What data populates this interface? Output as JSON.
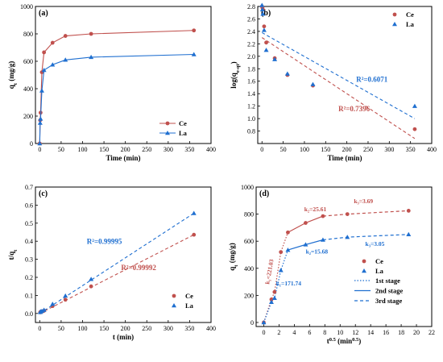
{
  "colors": {
    "ce": "#c0504d",
    "la": "#1f6fd0",
    "axis": "#000000"
  },
  "chart_data": [
    {
      "id": "a",
      "panel_label": "(a)",
      "type": "line",
      "xlabel": "Time (min)",
      "ylabel": "q_t (mg/g)",
      "xlim": [
        -10,
        400
      ],
      "ylim": [
        0,
        1000
      ],
      "xticks": [
        0,
        50,
        100,
        150,
        200,
        250,
        300,
        350,
        400
      ],
      "yticks": [
        0,
        200,
        400,
        600,
        800,
        1000
      ],
      "legend": "bottom-right",
      "series": [
        {
          "name": "Ce",
          "color": "#c0504d",
          "marker": "circle",
          "line": true,
          "x": [
            0,
            1,
            2,
            5,
            10,
            30,
            60,
            120,
            360
          ],
          "y": [
            0,
            170,
            225,
            520,
            665,
            735,
            785,
            800,
            825
          ]
        },
        {
          "name": "La",
          "color": "#1f6fd0",
          "marker": "triangle",
          "line": true,
          "x": [
            0,
            1,
            2,
            5,
            10,
            30,
            60,
            120,
            360
          ],
          "y": [
            0,
            150,
            180,
            385,
            535,
            575,
            610,
            630,
            650
          ]
        }
      ]
    },
    {
      "id": "b",
      "panel_label": "(b)",
      "type": "scatter",
      "xlabel": "Time (min)",
      "ylabel": "log(q_e-q_t)",
      "xlim": [
        -10,
        400
      ],
      "ylim": [
        0.6,
        2.8
      ],
      "xticks": [
        0,
        50,
        100,
        150,
        200,
        250,
        300,
        350,
        400
      ],
      "yticks": [
        0.8,
        1.0,
        1.2,
        1.4,
        1.6,
        1.8,
        2.0,
        2.2,
        2.4,
        2.6,
        2.8
      ],
      "legend": "top-right",
      "series": [
        {
          "name": "Ce",
          "color": "#c0504d",
          "marker": "circle",
          "x": [
            0,
            1,
            2,
            5,
            10,
            30,
            60,
            120,
            360
          ],
          "y": [
            2.8,
            2.78,
            2.75,
            2.48,
            2.22,
            1.97,
            1.7,
            1.53,
            0.83
          ],
          "fit": {
            "x": [
              0,
              360
            ],
            "y": [
              2.3,
              0.68
            ],
            "dash": true
          }
        },
        {
          "name": "La",
          "color": "#1f6fd0",
          "marker": "triangle",
          "x": [
            0,
            1,
            2,
            5,
            10,
            30,
            60,
            120,
            360
          ],
          "y": [
            2.82,
            2.75,
            2.68,
            2.42,
            2.1,
            1.95,
            1.72,
            1.55,
            1.2
          ],
          "fit": {
            "x": [
              0,
              360
            ],
            "y": [
              2.38,
              1.0
            ],
            "dash": true
          }
        }
      ],
      "annotations": [
        {
          "text": "R²=0.6071",
          "color": "#1f6fd0",
          "x": 222,
          "y": 1.59
        },
        {
          "text": "R²=0.7396",
          "color": "#c0504d",
          "x": 180,
          "y": 1.12
        }
      ]
    },
    {
      "id": "c",
      "panel_label": "(c)",
      "type": "scatter",
      "xlabel": "t (min)",
      "ylabel": "t/q_t",
      "xlim": [
        -10,
        400
      ],
      "ylim": [
        -0.05,
        0.7
      ],
      "xticks": [
        0,
        50,
        100,
        150,
        200,
        250,
        300,
        350,
        400
      ],
      "yticks": [
        0.0,
        0.1,
        0.2,
        0.3,
        0.4,
        0.5,
        0.6,
        0.7
      ],
      "legend": "bottom-right",
      "series": [
        {
          "name": "Ce",
          "color": "#c0504d",
          "marker": "circle",
          "x": [
            1,
            2,
            5,
            10,
            30,
            60,
            120,
            360
          ],
          "y": [
            0.006,
            0.009,
            0.01,
            0.015,
            0.041,
            0.076,
            0.15,
            0.436
          ],
          "fit": {
            "x": [
              0,
              360
            ],
            "y": [
              0.0,
              0.436
            ],
            "dash": true
          }
        },
        {
          "name": "La",
          "color": "#1f6fd0",
          "marker": "triangle",
          "x": [
            1,
            2,
            5,
            10,
            30,
            60,
            120,
            360
          ],
          "y": [
            0.007,
            0.011,
            0.013,
            0.019,
            0.052,
            0.098,
            0.19,
            0.555
          ],
          "fit": {
            "x": [
              0,
              360
            ],
            "y": [
              0.0,
              0.555
            ],
            "dash": true
          }
        }
      ],
      "annotations": [
        {
          "text": "R²=0.99995",
          "color": "#1f6fd0",
          "x": 110,
          "y": 0.385
        },
        {
          "text": "R²=0.99992",
          "color": "#c0504d",
          "x": 190,
          "y": 0.24
        }
      ]
    },
    {
      "id": "d",
      "panel_label": "(d)",
      "type": "line",
      "xlabel": "t^0.5 (min^0.5)",
      "ylabel": "q_t (mg/g)",
      "xlim": [
        -1,
        22
      ],
      "ylim": [
        -30,
        1000
      ],
      "xticks": [
        0,
        2,
        4,
        6,
        8,
        10,
        12,
        14,
        16,
        18,
        20,
        22
      ],
      "yticks": [
        0,
        200,
        400,
        600,
        800,
        1000
      ],
      "legend": "bottom-right",
      "series": [
        {
          "name": "Ce",
          "color": "#c0504d",
          "marker": "circle",
          "x": [
            0,
            1,
            1.41,
            2.24,
            3.16,
            5.48,
            7.75,
            10.95,
            18.97
          ],
          "y": [
            0,
            170,
            225,
            520,
            665,
            735,
            785,
            800,
            825
          ]
        },
        {
          "name": "La",
          "color": "#1f6fd0",
          "marker": "triangle",
          "x": [
            0,
            1,
            1.41,
            2.24,
            3.16,
            5.48,
            7.75,
            10.95,
            18.97
          ],
          "y": [
            0,
            150,
            180,
            385,
            535,
            575,
            610,
            630,
            650
          ]
        }
      ],
      "stage_lines": [
        {
          "stage": "1st stage",
          "style": "dotted",
          "color": "#c0504d",
          "x": [
            0,
            1,
            1.41,
            2.24,
            3.16
          ],
          "y": [
            0,
            170,
            225,
            520,
            665
          ]
        },
        {
          "stage": "2nd stage",
          "style": "solid",
          "color": "#c0504d",
          "x": [
            3.16,
            5.48,
            7.75
          ],
          "y": [
            665,
            735,
            785
          ]
        },
        {
          "stage": "3rd stage",
          "style": "dashed",
          "color": "#c0504d",
          "x": [
            7.75,
            10.95,
            18.97
          ],
          "y": [
            785,
            800,
            825
          ]
        },
        {
          "stage": "1st stage",
          "style": "dotted",
          "color": "#1f6fd0",
          "x": [
            0,
            1,
            1.41,
            2.24,
            3.16
          ],
          "y": [
            0,
            150,
            180,
            385,
            535
          ]
        },
        {
          "stage": "2nd stage",
          "style": "solid",
          "color": "#1f6fd0",
          "x": [
            3.16,
            5.48,
            7.75
          ],
          "y": [
            535,
            575,
            610
          ]
        },
        {
          "stage": "3rd stage",
          "style": "dashed",
          "color": "#1f6fd0",
          "x": [
            7.75,
            10.95,
            18.97
          ],
          "y": [
            610,
            630,
            650
          ]
        }
      ],
      "stage_legend": [
        "1st stage",
        "2nd stage",
        "3rd stage"
      ],
      "annotations": [
        {
          "text": "k₂=25.61",
          "color": "#c0504d",
          "x": 5.3,
          "y": 820
        },
        {
          "text": "k₃=3.69",
          "color": "#c0504d",
          "x": 11.8,
          "y": 880
        },
        {
          "text": "k₂=15.68",
          "color": "#1f6fd0",
          "x": 5.5,
          "y": 510
        },
        {
          "text": "k₃=3.05",
          "color": "#1f6fd0",
          "x": 13.3,
          "y": 565
        },
        {
          "text": "k₁=171.74",
          "color": "#1f6fd0",
          "x": 1.6,
          "y": 275
        },
        {
          "text": "k₁=221.03",
          "color": "#c0504d",
          "x": 0.7,
          "y": 280,
          "rotate": -80
        }
      ]
    }
  ]
}
